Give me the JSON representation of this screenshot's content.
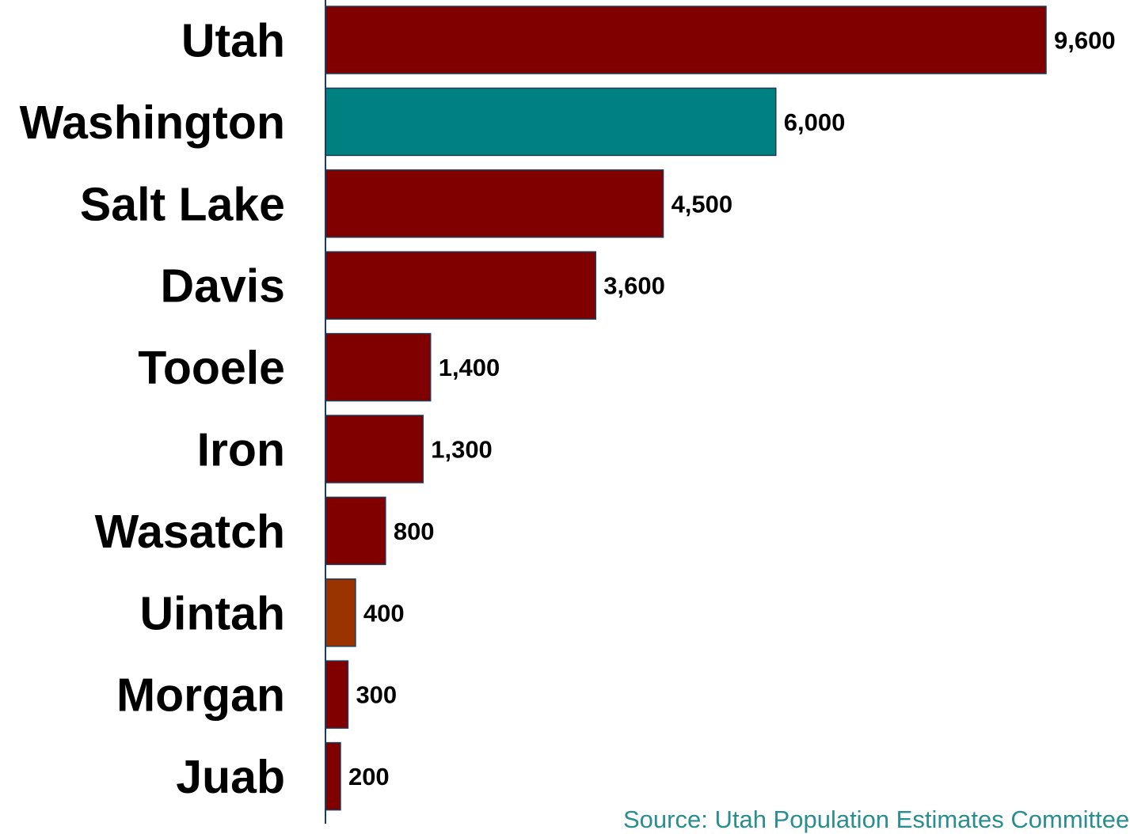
{
  "chart_data": {
    "type": "bar",
    "orientation": "horizontal",
    "categories": [
      "Utah",
      "Washington",
      "Salt Lake",
      "Davis",
      "Tooele",
      "Iron",
      "Wasatch",
      "Uintah",
      "Morgan",
      "Juab"
    ],
    "values": [
      9600,
      6000,
      4500,
      3600,
      1400,
      1300,
      800,
      400,
      300,
      200
    ],
    "value_labels": [
      "9,600",
      "6,000",
      "4,500",
      "3,600",
      "1,400",
      "1,300",
      "800",
      "400",
      "300",
      "200"
    ],
    "bar_colors": [
      "#800000",
      "#008080",
      "#800000",
      "#800000",
      "#800000",
      "#800000",
      "#800000",
      "#993300",
      "#800000",
      "#800000"
    ],
    "xlim": [
      0,
      9600
    ],
    "grid": false,
    "legend": "none"
  },
  "source_note": "Source: Utah Population Estimates Committee",
  "colors": {
    "primary_bar": "#800000",
    "highlight_bar": "#008080",
    "secondary_bar": "#993300",
    "source_text": "#2a8d8f",
    "axis": "#1f3b5a"
  }
}
